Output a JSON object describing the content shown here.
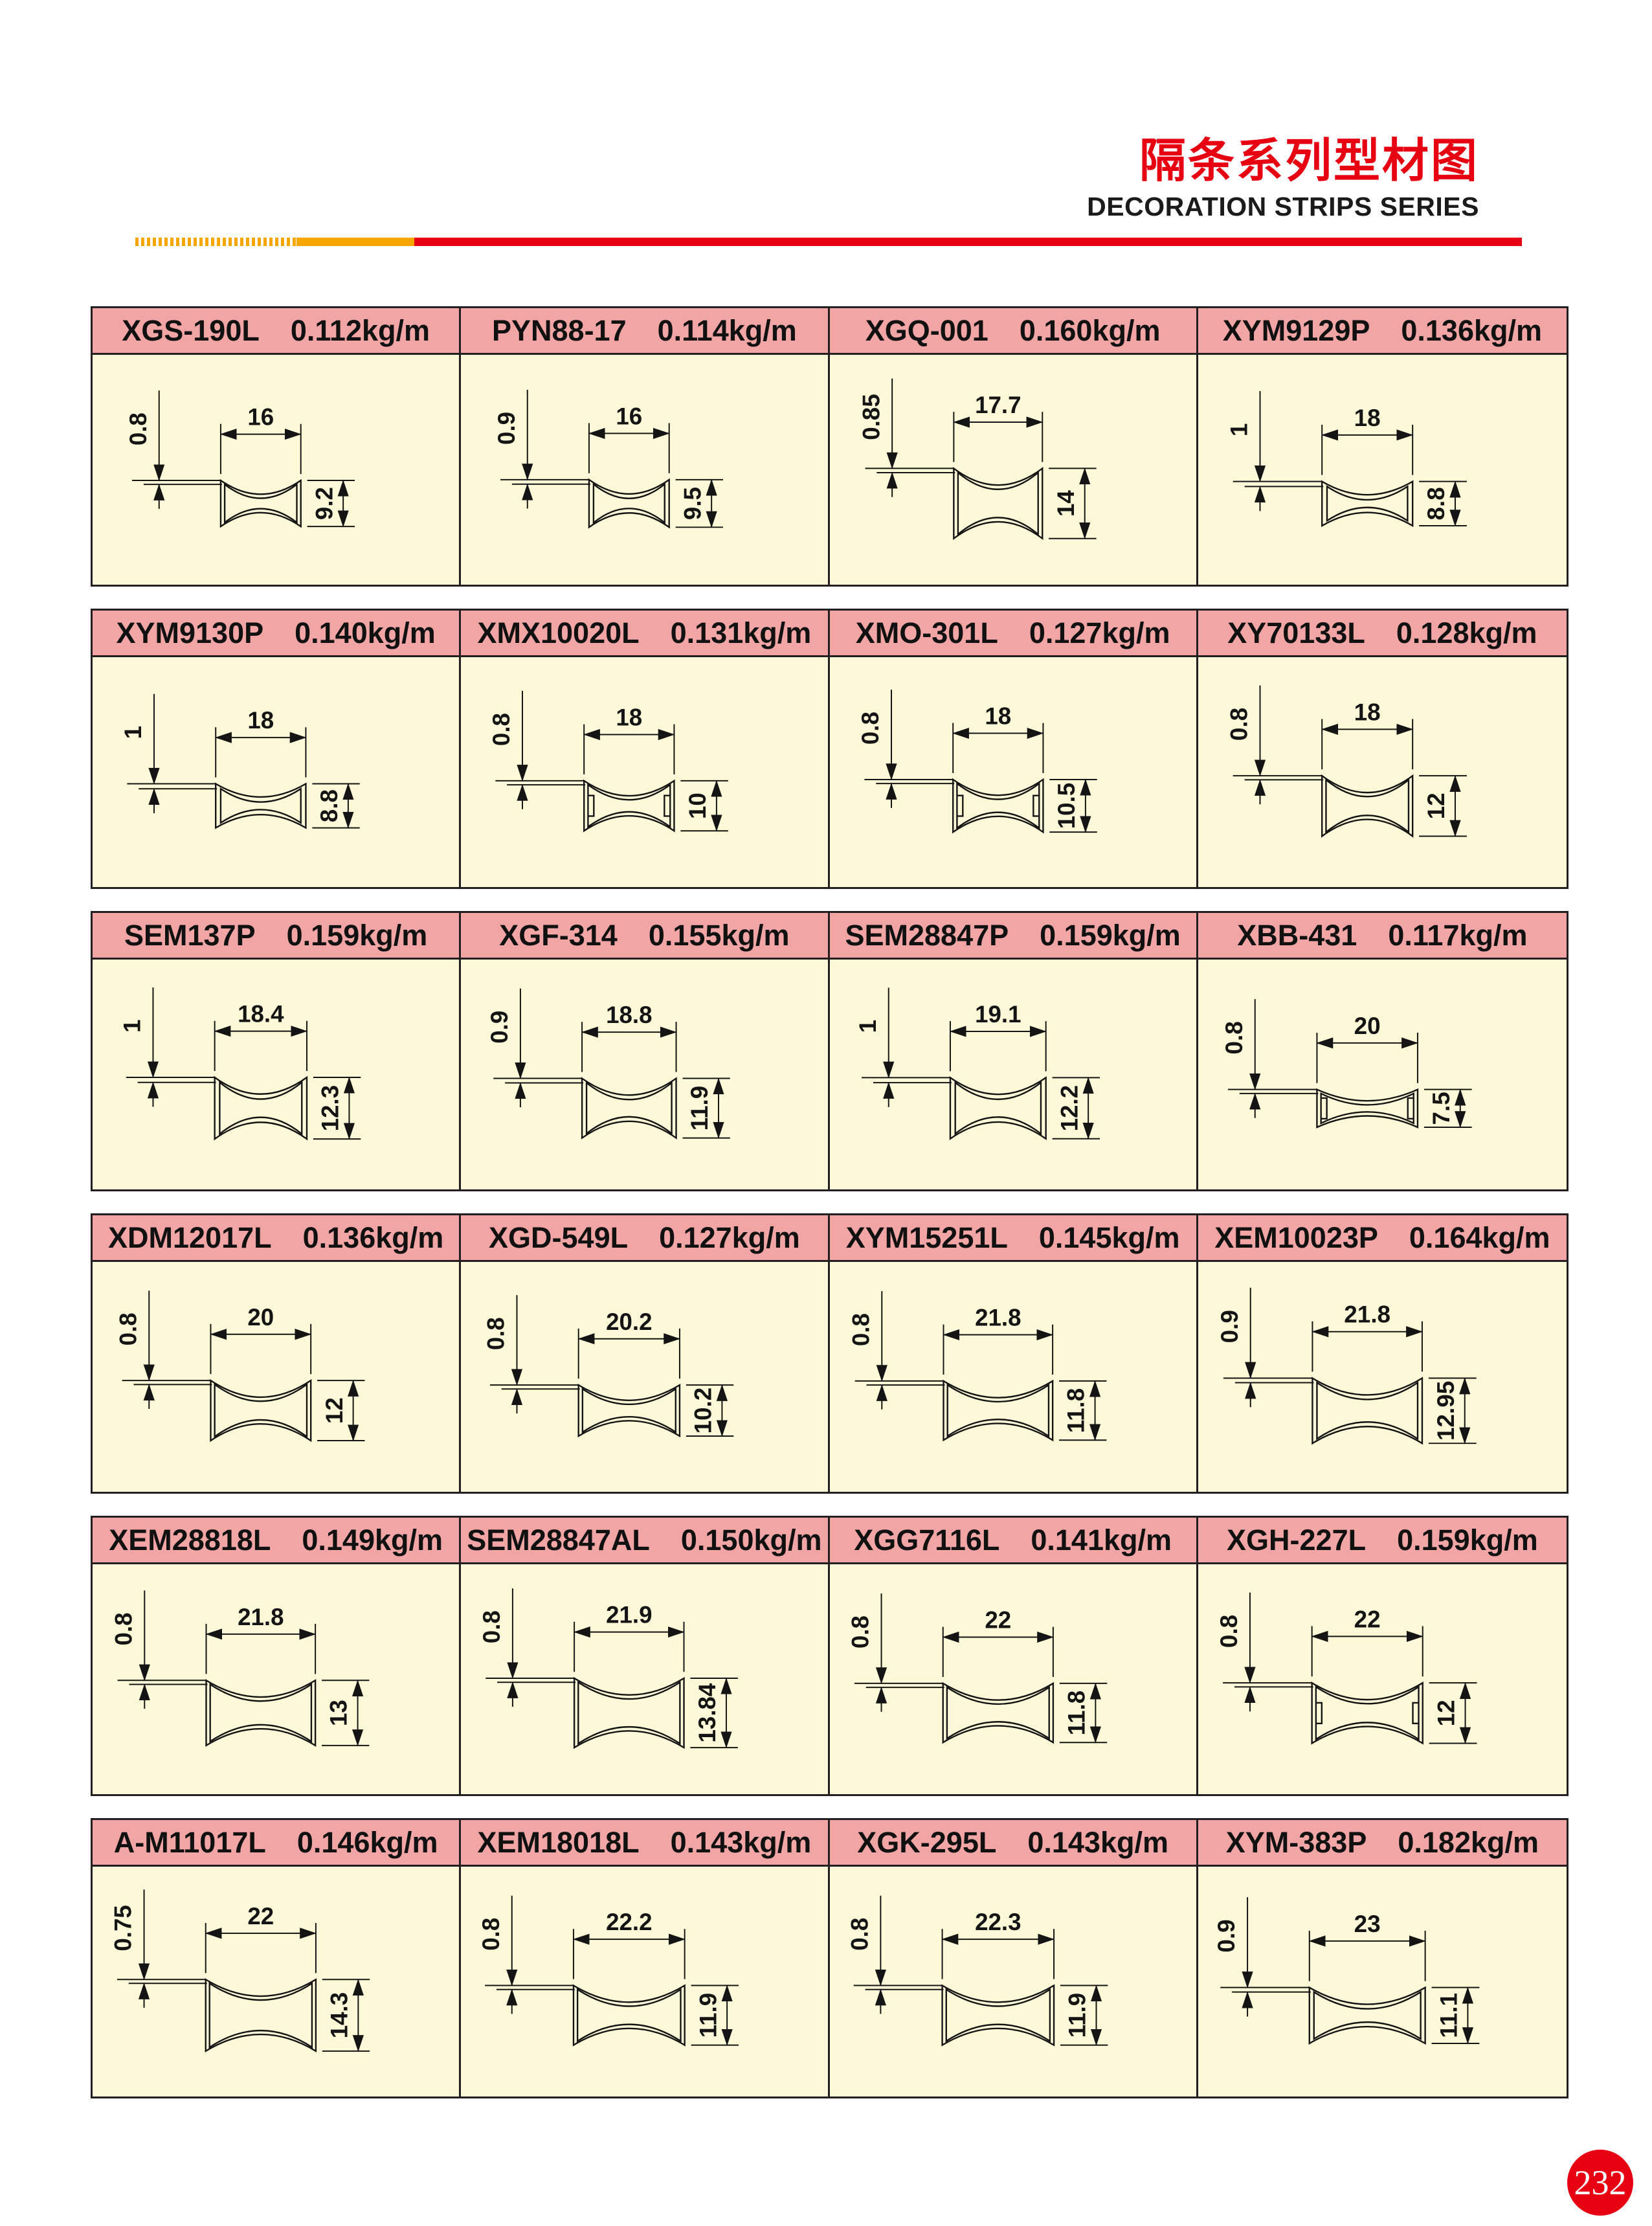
{
  "header": {
    "title_cn": "隔条系列型材图",
    "title_en": "DECORATION STRIPS SERIES"
  },
  "footer": {
    "page_number": "232"
  },
  "colors": {
    "pink": "#f1a5a5",
    "cream": "#fdf9d8",
    "border": "#231f20",
    "red": "#e60012",
    "yellow": "#f7a600",
    "ink": "#141414"
  },
  "cells": [
    {
      "model": "XGS-190L",
      "weight": "0.112kg/m",
      "dim_width": "16",
      "dim_thickness": "0.8",
      "dim_height": "9.2",
      "notched": false
    },
    {
      "model": "PYN88-17",
      "weight": "0.114kg/m",
      "dim_width": "16",
      "dim_thickness": "0.9",
      "dim_height": "9.5",
      "notched": false
    },
    {
      "model": "XGQ-001",
      "weight": "0.160kg/m",
      "dim_width": "17.7",
      "dim_thickness": "0.85",
      "dim_height": "14",
      "notched": false
    },
    {
      "model": "XYM9129P",
      "weight": "0.136kg/m",
      "dim_width": "18",
      "dim_thickness": "1",
      "dim_height": "8.8",
      "notched": false
    },
    {
      "model": "XYM9130P",
      "weight": "0.140kg/m",
      "dim_width": "18",
      "dim_thickness": "1",
      "dim_height": "8.8",
      "notched": false
    },
    {
      "model": "XMX10020L",
      "weight": "0.131kg/m",
      "dim_width": "18",
      "dim_thickness": "0.8",
      "dim_height": "10",
      "notched": true
    },
    {
      "model": "XMO-301L",
      "weight": "0.127kg/m",
      "dim_width": "18",
      "dim_thickness": "0.8",
      "dim_height": "10.5",
      "notched": true
    },
    {
      "model": "XY70133L",
      "weight": "0.128kg/m",
      "dim_width": "18",
      "dim_thickness": "0.8",
      "dim_height": "12",
      "notched": false
    },
    {
      "model": "SEM137P",
      "weight": "0.159kg/m",
      "dim_width": "18.4",
      "dim_thickness": "1",
      "dim_height": "12.3",
      "notched": false
    },
    {
      "model": "XGF-314",
      "weight": "0.155kg/m",
      "dim_width": "18.8",
      "dim_thickness": "0.9",
      "dim_height": "11.9",
      "notched": false
    },
    {
      "model": "SEM28847P",
      "weight": "0.159kg/m",
      "dim_width": "19.1",
      "dim_thickness": "1",
      "dim_height": "12.2",
      "notched": false
    },
    {
      "model": "XBB-431",
      "weight": "0.117kg/m",
      "dim_width": "20",
      "dim_thickness": "0.8",
      "dim_height": "7.5",
      "notched": true
    },
    {
      "model": "XDM12017L",
      "weight": "0.136kg/m",
      "dim_width": "20",
      "dim_thickness": "0.8",
      "dim_height": "12",
      "notched": false
    },
    {
      "model": "XGD-549L",
      "weight": "0.127kg/m",
      "dim_width": "20.2",
      "dim_thickness": "0.8",
      "dim_height": "10.2",
      "notched": false
    },
    {
      "model": "XYM15251L",
      "weight": "0.145kg/m",
      "dim_width": "21.8",
      "dim_thickness": "0.8",
      "dim_height": "11.8",
      "notched": false
    },
    {
      "model": "XEM10023P",
      "weight": "0.164kg/m",
      "dim_width": "21.8",
      "dim_thickness": "0.9",
      "dim_height": "12.95",
      "notched": false
    },
    {
      "model": "XEM28818L",
      "weight": "0.149kg/m",
      "dim_width": "21.8",
      "dim_thickness": "0.8",
      "dim_height": "13",
      "notched": false
    },
    {
      "model": "SEM28847AL",
      "weight": "0.150kg/m",
      "dim_width": "21.9",
      "dim_thickness": "0.8",
      "dim_height": "13.84",
      "notched": false
    },
    {
      "model": "XGG7116L",
      "weight": "0.141kg/m",
      "dim_width": "22",
      "dim_thickness": "0.8",
      "dim_height": "11.8",
      "notched": false
    },
    {
      "model": "XGH-227L",
      "weight": "0.159kg/m",
      "dim_width": "22",
      "dim_thickness": "0.8",
      "dim_height": "12",
      "notched": true
    },
    {
      "model": "A-M11017L",
      "weight": "0.146kg/m",
      "dim_width": "22",
      "dim_thickness": "0.75",
      "dim_height": "14.3",
      "notched": false
    },
    {
      "model": "XEM18018L",
      "weight": "0.143kg/m",
      "dim_width": "22.2",
      "dim_thickness": "0.8",
      "dim_height": "11.9",
      "notched": false
    },
    {
      "model": "XGK-295L",
      "weight": "0.143kg/m",
      "dim_width": "22.3",
      "dim_thickness": "0.8",
      "dim_height": "11.9",
      "notched": false
    },
    {
      "model": "XYM-383P",
      "weight": "0.182kg/m",
      "dim_width": "23",
      "dim_thickness": "0.9",
      "dim_height": "11.1",
      "notched": false
    }
  ]
}
